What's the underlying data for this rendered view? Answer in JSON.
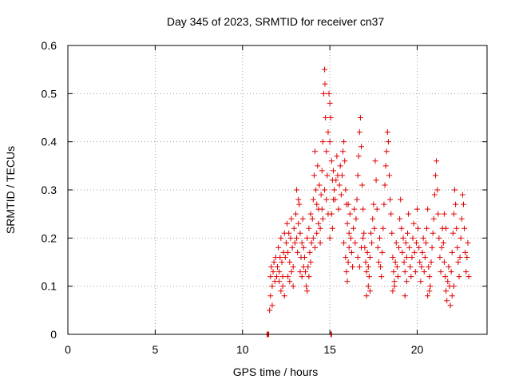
{
  "chart_data": {
    "type": "scatter",
    "title": "Day 345 of 2023, SRMTID for receiver cn37",
    "xlabel": "GPS time / hours",
    "ylabel": "SRMTID / TECUs",
    "xlim": [
      0,
      24
    ],
    "ylim": [
      0,
      0.6
    ],
    "xticks": [
      0,
      5,
      10,
      15,
      20
    ],
    "xtick_labels": [
      "0",
      "5",
      "10",
      "15",
      "20"
    ],
    "yticks": [
      0,
      0.1,
      0.2,
      0.3,
      0.4,
      0.5,
      0.6
    ],
    "ytick_labels": [
      "0",
      "0.1",
      "0.2",
      "0.3",
      "0.4",
      "0.5",
      "0.6"
    ],
    "grid": true,
    "marker": "+",
    "series_color": "#e00000",
    "series": [
      {
        "name": "cn37",
        "points": [
          [
            11.4,
            0.0
          ],
          [
            11.45,
            0.0
          ],
          [
            11.5,
            0.0
          ],
          [
            11.55,
            0.05
          ],
          [
            11.6,
            0.08
          ],
          [
            11.6,
            0.12
          ],
          [
            11.65,
            0.14
          ],
          [
            11.7,
            0.1
          ],
          [
            11.7,
            0.06
          ],
          [
            11.75,
            0.13
          ],
          [
            11.8,
            0.15
          ],
          [
            11.85,
            0.11
          ],
          [
            11.9,
            0.16
          ],
          [
            11.95,
            0.12
          ],
          [
            12.0,
            0.14
          ],
          [
            12.05,
            0.18
          ],
          [
            12.1,
            0.13
          ],
          [
            12.15,
            0.16
          ],
          [
            12.2,
            0.2
          ],
          [
            12.25,
            0.15
          ],
          [
            12.3,
            0.12
          ],
          [
            12.35,
            0.17
          ],
          [
            12.4,
            0.21
          ],
          [
            12.45,
            0.16
          ],
          [
            12.2,
            0.09
          ],
          [
            12.3,
            0.1
          ],
          [
            12.4,
            0.08
          ],
          [
            12.1,
            0.11
          ],
          [
            12.5,
            0.19
          ],
          [
            12.55,
            0.23
          ],
          [
            12.6,
            0.17
          ],
          [
            12.65,
            0.21
          ],
          [
            12.7,
            0.15
          ],
          [
            12.75,
            0.2
          ],
          [
            12.8,
            0.24
          ],
          [
            12.85,
            0.18
          ],
          [
            12.9,
            0.14
          ],
          [
            12.95,
            0.22
          ],
          [
            12.6,
            0.12
          ],
          [
            12.8,
            0.13
          ],
          [
            12.9,
            0.1
          ],
          [
            12.7,
            0.11
          ],
          [
            13.0,
            0.19
          ],
          [
            13.05,
            0.25
          ],
          [
            13.1,
            0.2
          ],
          [
            13.15,
            0.17
          ],
          [
            13.2,
            0.23
          ],
          [
            13.25,
            0.27
          ],
          [
            13.3,
            0.21
          ],
          [
            13.35,
            0.16
          ],
          [
            13.4,
            0.19
          ],
          [
            13.45,
            0.24
          ],
          [
            13.1,
            0.3
          ],
          [
            13.2,
            0.28
          ],
          [
            13.3,
            0.13
          ],
          [
            13.4,
            0.12
          ],
          [
            13.5,
            0.14
          ],
          [
            13.5,
            0.18
          ],
          [
            13.55,
            0.16
          ],
          [
            13.6,
            0.13
          ],
          [
            13.65,
            0.1
          ],
          [
            13.7,
            0.09
          ],
          [
            13.75,
            0.14
          ],
          [
            13.8,
            0.12
          ],
          [
            13.85,
            0.17
          ],
          [
            13.9,
            0.15
          ],
          [
            13.95,
            0.19
          ],
          [
            13.7,
            0.2
          ],
          [
            13.8,
            0.22
          ],
          [
            13.9,
            0.25
          ],
          [
            14.0,
            0.24
          ],
          [
            14.05,
            0.28
          ],
          [
            14.1,
            0.33
          ],
          [
            14.15,
            0.38
          ],
          [
            14.2,
            0.3
          ],
          [
            14.25,
            0.27
          ],
          [
            14.3,
            0.35
          ],
          [
            14.35,
            0.26
          ],
          [
            14.4,
            0.31
          ],
          [
            14.45,
            0.22
          ],
          [
            14.05,
            0.2
          ],
          [
            14.15,
            0.18
          ],
          [
            14.25,
            0.21
          ],
          [
            14.35,
            0.23
          ],
          [
            14.45,
            0.19
          ],
          [
            14.5,
            0.29
          ],
          [
            14.55,
            0.34
          ],
          [
            14.6,
            0.4
          ],
          [
            14.65,
            0.5
          ],
          [
            14.7,
            0.55
          ],
          [
            14.72,
            0.52
          ],
          [
            14.75,
            0.45
          ],
          [
            14.8,
            0.38
          ],
          [
            14.85,
            0.33
          ],
          [
            14.9,
            0.42
          ],
          [
            14.55,
            0.26
          ],
          [
            14.6,
            0.24
          ],
          [
            14.7,
            0.3
          ],
          [
            14.8,
            0.28
          ],
          [
            14.9,
            0.25
          ],
          [
            14.95,
            0.5
          ],
          [
            15.0,
            0.48
          ],
          [
            15.05,
            0.45
          ],
          [
            15.0,
            0.4
          ],
          [
            15.1,
            0.36
          ],
          [
            15.15,
            0.32
          ],
          [
            15.2,
            0.28
          ],
          [
            15.1,
            0.25
          ],
          [
            15.15,
            0.22
          ],
          [
            15.0,
            0.2
          ],
          [
            15.05,
            0.0
          ],
          [
            15.1,
            0.0
          ],
          [
            15.2,
            0.34
          ],
          [
            15.25,
            0.3
          ],
          [
            15.3,
            0.28
          ],
          [
            15.35,
            0.32
          ],
          [
            15.4,
            0.37
          ],
          [
            15.45,
            0.33
          ],
          [
            15.5,
            0.26
          ],
          [
            15.55,
            0.31
          ],
          [
            15.6,
            0.35
          ],
          [
            15.65,
            0.29
          ],
          [
            15.7,
            0.33
          ],
          [
            15.75,
            0.38
          ],
          [
            15.8,
            0.4
          ],
          [
            15.85,
            0.36
          ],
          [
            15.9,
            0.3
          ],
          [
            15.95,
            0.27
          ],
          [
            15.8,
            0.19
          ],
          [
            15.9,
            0.16
          ],
          [
            15.95,
            0.13
          ],
          [
            16.0,
            0.11
          ],
          [
            16.05,
            0.15
          ],
          [
            16.1,
            0.18
          ],
          [
            16.0,
            0.23
          ],
          [
            16.05,
            0.27
          ],
          [
            16.1,
            0.21
          ],
          [
            16.15,
            0.25
          ],
          [
            16.2,
            0.2
          ],
          [
            16.25,
            0.17
          ],
          [
            16.3,
            0.14
          ],
          [
            16.35,
            0.22
          ],
          [
            16.4,
            0.26
          ],
          [
            16.45,
            0.19
          ],
          [
            16.5,
            0.24
          ],
          [
            16.55,
            0.28
          ],
          [
            16.6,
            0.33
          ],
          [
            16.65,
            0.37
          ],
          [
            16.7,
            0.42
          ],
          [
            16.75,
            0.45
          ],
          [
            16.8,
            0.39
          ],
          [
            16.85,
            0.31
          ],
          [
            16.9,
            0.26
          ],
          [
            16.95,
            0.21
          ],
          [
            16.6,
            0.16
          ],
          [
            16.7,
            0.14
          ],
          [
            16.8,
            0.18
          ],
          [
            16.9,
            0.2
          ],
          [
            17.0,
            0.18
          ],
          [
            17.05,
            0.15
          ],
          [
            17.1,
            0.13
          ],
          [
            17.15,
            0.17
          ],
          [
            17.2,
            0.14
          ],
          [
            17.25,
            0.12
          ],
          [
            17.3,
            0.16
          ],
          [
            17.35,
            0.21
          ],
          [
            17.4,
            0.19
          ],
          [
            17.45,
            0.24
          ],
          [
            17.1,
            0.08
          ],
          [
            17.2,
            0.1
          ],
          [
            17.3,
            0.09
          ],
          [
            17.5,
            0.27
          ],
          [
            17.55,
            0.22
          ],
          [
            17.6,
            0.36
          ],
          [
            17.65,
            0.32
          ],
          [
            17.7,
            0.26
          ],
          [
            17.75,
            0.18
          ],
          [
            17.8,
            0.15
          ],
          [
            17.85,
            0.2
          ],
          [
            17.9,
            0.14
          ],
          [
            17.95,
            0.12
          ],
          [
            18.0,
            0.17
          ],
          [
            18.05,
            0.22
          ],
          [
            18.1,
            0.27
          ],
          [
            18.15,
            0.31
          ],
          [
            18.2,
            0.35
          ],
          [
            18.25,
            0.38
          ],
          [
            18.3,
            0.42
          ],
          [
            18.35,
            0.4
          ],
          [
            18.4,
            0.33
          ],
          [
            18.45,
            0.28
          ],
          [
            18.5,
            0.25
          ],
          [
            18.55,
            0.21
          ],
          [
            18.6,
            0.16
          ],
          [
            18.65,
            0.13
          ],
          [
            18.7,
            0.11
          ],
          [
            18.75,
            0.15
          ],
          [
            18.8,
            0.19
          ],
          [
            18.85,
            0.14
          ],
          [
            18.9,
            0.12
          ],
          [
            18.95,
            0.18
          ],
          [
            18.6,
            0.09
          ],
          [
            18.7,
            0.1
          ],
          [
            19.0,
            0.24
          ],
          [
            19.05,
            0.28
          ],
          [
            19.1,
            0.22
          ],
          [
            19.15,
            0.17
          ],
          [
            19.2,
            0.2
          ],
          [
            19.25,
            0.15
          ],
          [
            19.3,
            0.13
          ],
          [
            19.35,
            0.19
          ],
          [
            19.4,
            0.16
          ],
          [
            19.45,
            0.21
          ],
          [
            19.3,
            0.08
          ],
          [
            19.4,
            0.11
          ],
          [
            19.5,
            0.25
          ],
          [
            19.55,
            0.18
          ],
          [
            19.6,
            0.14
          ],
          [
            19.65,
            0.12
          ],
          [
            19.7,
            0.16
          ],
          [
            19.75,
            0.2
          ],
          [
            19.8,
            0.23
          ],
          [
            19.85,
            0.17
          ],
          [
            19.9,
            0.13
          ],
          [
            19.95,
            0.19
          ],
          [
            20.0,
            0.26
          ],
          [
            20.05,
            0.22
          ],
          [
            20.1,
            0.18
          ],
          [
            20.15,
            0.15
          ],
          [
            20.2,
            0.11
          ],
          [
            20.25,
            0.14
          ],
          [
            20.3,
            0.17
          ],
          [
            20.35,
            0.2
          ],
          [
            20.4,
            0.13
          ],
          [
            20.45,
            0.16
          ],
          [
            20.5,
            0.19
          ],
          [
            20.55,
            0.22
          ],
          [
            20.6,
            0.26
          ],
          [
            20.65,
            0.14
          ],
          [
            20.7,
            0.12
          ],
          [
            20.75,
            0.1
          ],
          [
            20.8,
            0.15
          ],
          [
            20.85,
            0.18
          ],
          [
            20.9,
            0.21
          ],
          [
            20.95,
            0.24
          ],
          [
            20.6,
            0.08
          ],
          [
            20.7,
            0.09
          ],
          [
            21.0,
            0.29
          ],
          [
            21.05,
            0.33
          ],
          [
            21.1,
            0.36
          ],
          [
            21.15,
            0.3
          ],
          [
            21.2,
            0.25
          ],
          [
            21.25,
            0.2
          ],
          [
            21.3,
            0.16
          ],
          [
            21.35,
            0.13
          ],
          [
            21.4,
            0.18
          ],
          [
            21.45,
            0.22
          ],
          [
            21.5,
            0.19
          ],
          [
            21.55,
            0.15
          ],
          [
            21.6,
            0.12
          ],
          [
            21.65,
            0.09
          ],
          [
            21.7,
            0.07
          ],
          [
            21.75,
            0.11
          ],
          [
            21.8,
            0.14
          ],
          [
            21.85,
            0.1
          ],
          [
            21.9,
            0.06
          ],
          [
            21.95,
            0.13
          ],
          [
            21.55,
            0.25
          ],
          [
            21.65,
            0.22
          ],
          [
            22.0,
            0.17
          ],
          [
            22.05,
            0.21
          ],
          [
            22.1,
            0.25
          ],
          [
            22.15,
            0.3
          ],
          [
            22.2,
            0.27
          ],
          [
            22.25,
            0.22
          ],
          [
            22.3,
            0.18
          ],
          [
            22.35,
            0.15
          ],
          [
            22.4,
            0.12
          ],
          [
            22.45,
            0.16
          ],
          [
            22.0,
            0.08
          ],
          [
            22.1,
            0.1
          ],
          [
            22.5,
            0.2
          ],
          [
            22.55,
            0.24
          ],
          [
            22.6,
            0.29
          ],
          [
            22.65,
            0.27
          ],
          [
            22.7,
            0.22
          ],
          [
            22.75,
            0.17
          ],
          [
            22.8,
            0.13
          ],
          [
            22.85,
            0.16
          ],
          [
            22.9,
            0.19
          ],
          [
            22.95,
            0.12
          ]
        ]
      }
    ]
  }
}
